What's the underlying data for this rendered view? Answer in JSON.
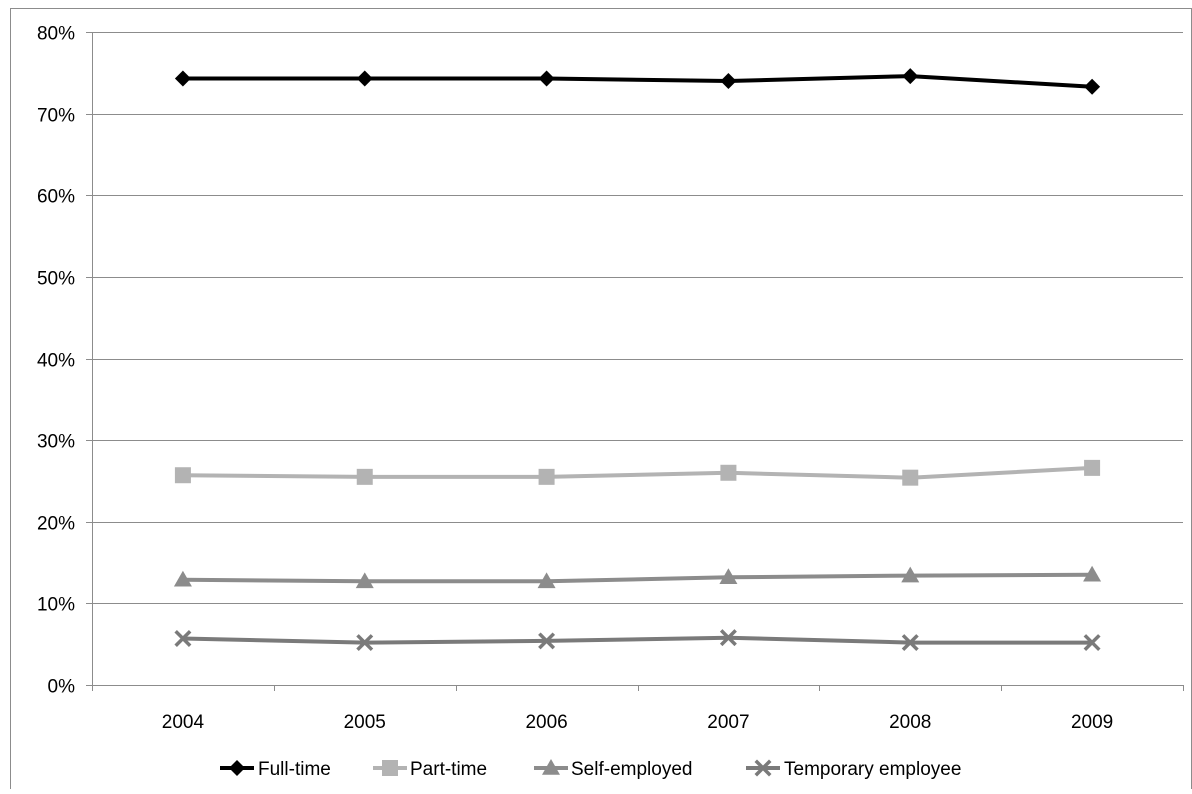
{
  "chart_data": {
    "type": "line",
    "title": "",
    "xlabel": "",
    "ylabel": "",
    "x": [
      "2004",
      "2005",
      "2006",
      "2007",
      "2008",
      "2009"
    ],
    "ylim": [
      0,
      80
    ],
    "yticks": [
      0,
      10,
      20,
      30,
      40,
      50,
      60,
      70,
      80
    ],
    "ytick_labels": [
      "0%",
      "10%",
      "20%",
      "30%",
      "40%",
      "50%",
      "60%",
      "70%",
      "80%"
    ],
    "grid": true,
    "legend_position": "bottom",
    "series": [
      {
        "name": "Full-time",
        "values": [
          74.3,
          74.3,
          74.3,
          74.0,
          74.6,
          73.3
        ],
        "color": "#000000",
        "marker": "diamond"
      },
      {
        "name": "Part-time",
        "values": [
          25.7,
          25.5,
          25.5,
          26.0,
          25.4,
          26.6
        ],
        "color": "#b3b3b3",
        "marker": "square"
      },
      {
        "name": "Self-employed",
        "values": [
          12.9,
          12.7,
          12.7,
          13.2,
          13.4,
          13.5
        ],
        "color": "#8c8c8c",
        "marker": "triangle"
      },
      {
        "name": "Temporary employee",
        "values": [
          5.7,
          5.2,
          5.4,
          5.8,
          5.2,
          5.2
        ],
        "color": "#7a7a7a",
        "marker": "x"
      }
    ]
  }
}
